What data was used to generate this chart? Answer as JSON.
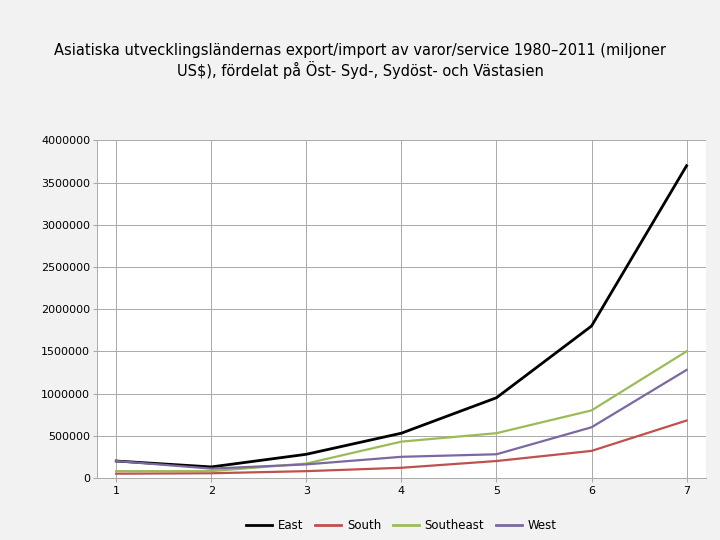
{
  "title_line1": "Asiatiska utvecklingsländernas export/import av varor/service 1980–2011 (miljoner",
  "title_line2": "US$), fördelat på Öst- Syd-, Sydöst- och Västasien",
  "x_values": [
    1,
    2,
    3,
    4,
    5,
    6,
    7
  ],
  "east": [
    200000,
    130000,
    280000,
    530000,
    950000,
    1800000,
    3700000
  ],
  "south": [
    50000,
    55000,
    80000,
    120000,
    200000,
    320000,
    680000
  ],
  "southeast": [
    80000,
    80000,
    170000,
    430000,
    530000,
    800000,
    1500000
  ],
  "west": [
    200000,
    110000,
    160000,
    250000,
    280000,
    600000,
    1280000
  ],
  "east_color": "#000000",
  "south_color": "#c0504d",
  "southeast_color": "#9bbb59",
  "west_color": "#7b68a0",
  "ylim": [
    0,
    4000000
  ],
  "yticks": [
    0,
    500000,
    1000000,
    1500000,
    2000000,
    2500000,
    3000000,
    3500000,
    4000000
  ],
  "xlim": [
    0.8,
    7.2
  ],
  "xticks": [
    1,
    2,
    3,
    4,
    5,
    6,
    7
  ],
  "title_bg_color": "#dce6f1",
  "fig_bg_color": "#f2f2f2",
  "plot_bg_color": "#ffffff",
  "grid_color": "#aaaaaa",
  "legend_labels": [
    "East",
    "South",
    "Southeast",
    "West"
  ],
  "title_fontsize": 10.5,
  "tick_fontsize": 8,
  "legend_fontsize": 8.5
}
